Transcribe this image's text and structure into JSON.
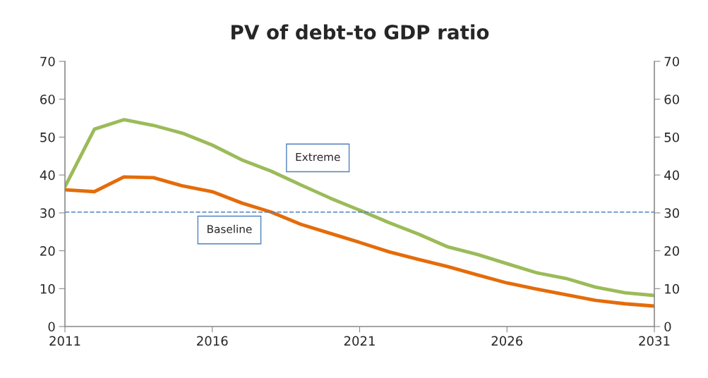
{
  "chart_data": {
    "type": "line",
    "title": "PV of debt-to GDP ratio",
    "x": [
      2011,
      2012,
      2013,
      2014,
      2015,
      2016,
      2017,
      2018,
      2019,
      2020,
      2021,
      2022,
      2023,
      2024,
      2025,
      2026,
      2027,
      2028,
      2029,
      2030,
      2031
    ],
    "series": [
      {
        "name": "Extreme",
        "color": "#9bbb59",
        "values": [
          36.9,
          52.1,
          54.6,
          53.1,
          51.0,
          47.9,
          44.0,
          41.0,
          37.4,
          33.9,
          30.7,
          27.4,
          24.4,
          21.0,
          19.0,
          16.6,
          14.2,
          12.7,
          10.4,
          8.9,
          8.2
        ]
      },
      {
        "name": "Baseline",
        "color": "#e46c0a",
        "values": [
          36.1,
          35.6,
          39.5,
          39.3,
          37.1,
          35.6,
          32.6,
          30.2,
          27.0,
          24.6,
          22.2,
          19.7,
          17.7,
          15.8,
          13.6,
          11.5,
          9.9,
          8.4,
          6.9,
          6.0,
          5.4
        ]
      }
    ],
    "xlim": [
      2011,
      2031
    ],
    "xticks": [
      2011,
      2016,
      2021,
      2026,
      2031
    ],
    "ylim": [
      0,
      70
    ],
    "yticks": [
      0,
      10,
      20,
      30,
      40,
      50,
      60,
      70
    ],
    "y2lim": [
      0,
      70
    ],
    "y2ticks": [
      0,
      10,
      20,
      30,
      40,
      50,
      60,
      70
    ],
    "ref_lines": [
      {
        "axis": "y",
        "value": 30.2,
        "color": "#4f81bd",
        "line_style": "dashed"
      }
    ],
    "grid": false,
    "legend": false,
    "marker": "none",
    "line_style": "solid"
  }
}
